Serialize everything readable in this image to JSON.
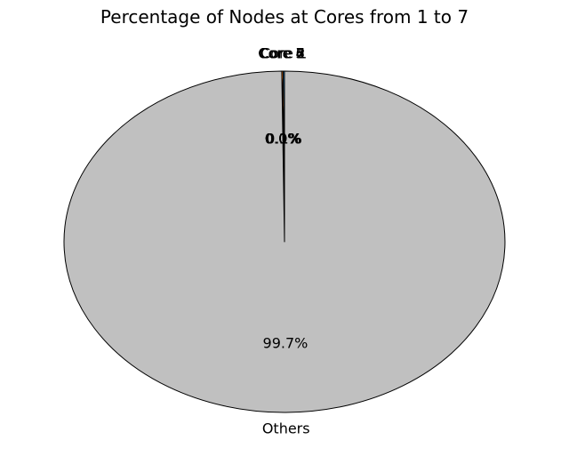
{
  "chart_data": {
    "type": "pie",
    "title": "Percentage of Nodes at Cores from 1 to 7",
    "start_angle_deg": 90,
    "direction": "counterclockwise",
    "slices": [
      {
        "label": "Core 1",
        "value": 0.1,
        "pct_label": "0.1%",
        "color": "#1f77b4"
      },
      {
        "label": "Core 2",
        "value": 0.1,
        "pct_label": "0.1%",
        "color": "#ff7f0e"
      },
      {
        "label": "Core 3",
        "value": 0.0,
        "pct_label": "0.0%",
        "color": "#2ca02c"
      },
      {
        "label": "Core 4",
        "value": 0.0,
        "pct_label": "0.0%",
        "color": "#d62728"
      },
      {
        "label": "Core 5",
        "value": 0.0,
        "pct_label": "0.0%",
        "color": "#9467bd"
      },
      {
        "label": "Core 6",
        "value": 0.0,
        "pct_label": "0.0%",
        "color": "#8c564b"
      },
      {
        "label": "Core 7",
        "value": 0.0,
        "pct_label": "0.0%",
        "color": "#e377c2"
      },
      {
        "label": "Others",
        "value": 99.7,
        "pct_label": "99.7%",
        "color": "#c0c0c0"
      }
    ]
  }
}
